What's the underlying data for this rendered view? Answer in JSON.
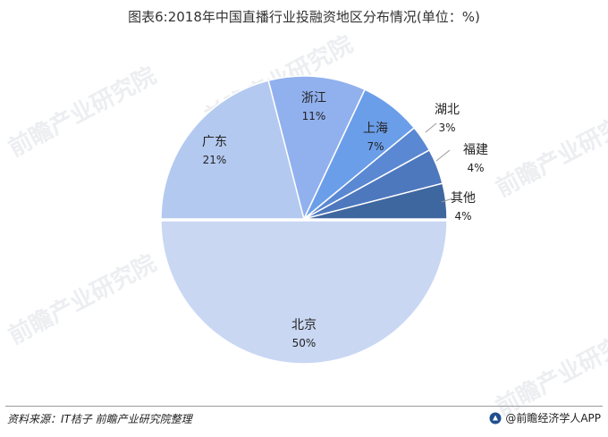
{
  "title": "图表6:2018年中国直播行业投融资地区分布情况(单位：%)",
  "chart_data": {
    "type": "pie",
    "title": "图表6:2018年中国直播行业投融资地区分布情况(单位：%)",
    "unit": "%",
    "slices": [
      {
        "label": "北京",
        "value": 50,
        "display": "50%",
        "color": "#c9d7f3"
      },
      {
        "label": "广东",
        "value": 21,
        "display": "21%",
        "color": "#b3c9f0"
      },
      {
        "label": "浙江",
        "value": 11,
        "display": "11%",
        "color": "#91b0ee"
      },
      {
        "label": "上海",
        "value": 7,
        "display": "7%",
        "color": "#6b9ee9"
      },
      {
        "label": "湖北",
        "value": 3,
        "display": "3%",
        "color": "#5a88d3"
      },
      {
        "label": "福建",
        "value": 4,
        "display": "4%",
        "color": "#4d78be"
      },
      {
        "label": "其他",
        "value": 4,
        "display": "4%",
        "color": "#3f679f"
      }
    ]
  },
  "footer": {
    "source": "资料来源：IT桔子 前瞻产业研究院整理",
    "brand": "@前瞻经济学人APP",
    "brand_icon": "qianzhan-logo-icon"
  },
  "watermark": {
    "text": "前瞻产业研究院"
  }
}
